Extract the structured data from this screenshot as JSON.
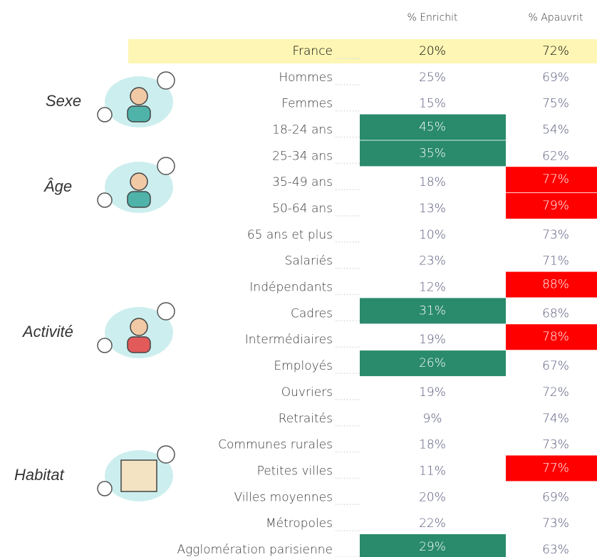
{
  "header": {
    "col_enrichit": "% Enrichit",
    "col_apauvrit": "% Apauvrit"
  },
  "total": {
    "label": "France",
    "enrichit": "20%",
    "apauvrit": "72%"
  },
  "groups": [
    {
      "label": "Sexe"
    },
    {
      "label": "Âge"
    },
    {
      "label": "Activité"
    },
    {
      "label": "Habitat"
    }
  ],
  "rows": [
    {
      "label": "Hommes",
      "enrichit": "25%",
      "apauvrit": "69%"
    },
    {
      "label": "Femmes",
      "enrichit": "15%",
      "apauvrit": "75%"
    },
    {
      "label": "18-24 ans",
      "enrichit": "45%",
      "apauvrit": "54%",
      "enrichit_fill": "#2a8a6c"
    },
    {
      "label": "25-34 ans",
      "enrichit": "35%",
      "apauvrit": "62%",
      "enrichit_fill": "#2a8a6c"
    },
    {
      "label": "35-49 ans",
      "enrichit": "18%",
      "apauvrit": "77%",
      "apauvrit_fill": "#ff0000"
    },
    {
      "label": "50-64 ans",
      "enrichit": "13%",
      "apauvrit": "79%",
      "apauvrit_fill": "#ff0000"
    },
    {
      "label": "65 ans et plus",
      "enrichit": "10%",
      "apauvrit": "73%"
    },
    {
      "label": "Salariés",
      "enrichit": "23%",
      "apauvrit": "71%"
    },
    {
      "label": "Indépendants",
      "enrichit": "12%",
      "apauvrit": "88%",
      "apauvrit_fill": "#ff0000"
    },
    {
      "label": "Cadres",
      "enrichit": "31%",
      "apauvrit": "68%",
      "enrichit_fill": "#2a8a6c"
    },
    {
      "label": "Intermédiaires",
      "enrichit": "19%",
      "apauvrit": "78%",
      "apauvrit_fill": "#ff0000"
    },
    {
      "label": "Employés",
      "enrichit": "26%",
      "apauvrit": "67%",
      "enrichit_fill": "#2a8a6c"
    },
    {
      "label": "Ouvriers",
      "enrichit": "19%",
      "apauvrit": "72%"
    },
    {
      "label": "Retraités",
      "enrichit": "9%",
      "apauvrit": "74%"
    },
    {
      "label": "Communes rurales",
      "enrichit": "18%",
      "apauvrit": "73%"
    },
    {
      "label": "Petites villes",
      "enrichit": "11%",
      "apauvrit": "77%",
      "apauvrit_fill": "#ff0000"
    },
    {
      "label": "Villes  moyennes",
      "enrichit": "20%",
      "apauvrit": "69%"
    },
    {
      "label": "Métropoles",
      "enrichit": "22%",
      "apauvrit": "73%"
    },
    {
      "label": "Agglomération parisienne",
      "enrichit": "29%",
      "apauvrit": "63%",
      "enrichit_fill": "#2a8a6c"
    }
  ]
}
